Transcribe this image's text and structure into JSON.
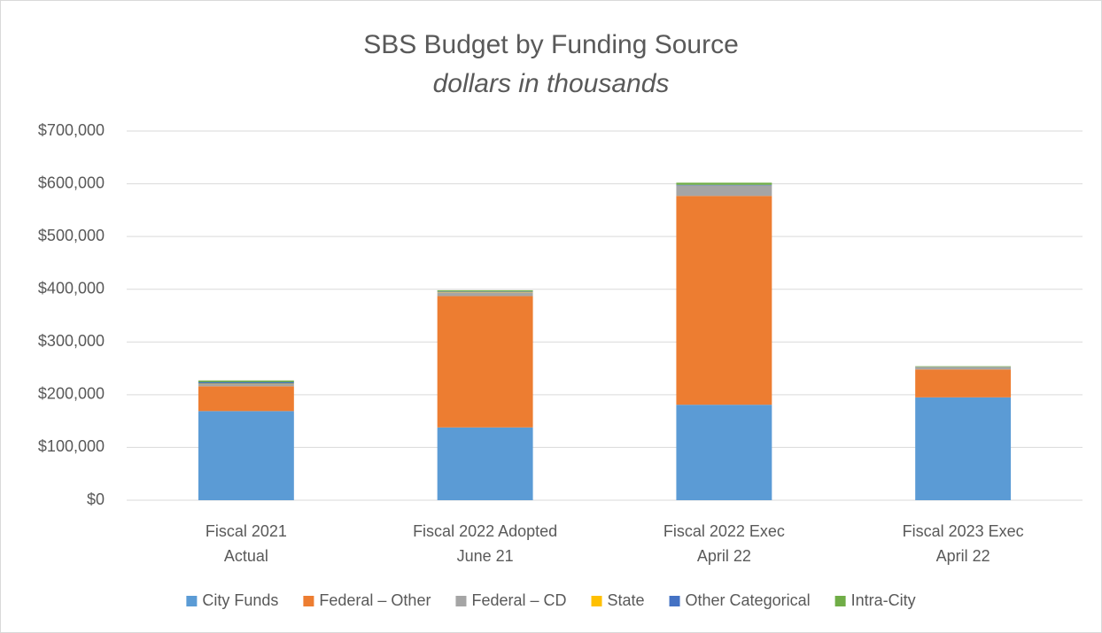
{
  "chart_data": {
    "type": "stacked_bar",
    "title": "SBS Budget by Funding Source",
    "subtitle": "dollars in thousands",
    "categories": [
      "Fiscal 2021\nActual",
      "Fiscal 2022 Adopted\nJune 21",
      "Fiscal 2022 Exec\nApril 22",
      "Fiscal 2023 Exec\nApril 22"
    ],
    "series": [
      {
        "name": "City Funds",
        "color": "#5b9bd5",
        "values": [
          169000,
          138000,
          181000,
          195000
        ]
      },
      {
        "name": "Federal – Other",
        "color": "#ed7d31",
        "values": [
          47000,
          249000,
          396000,
          53000
        ]
      },
      {
        "name": "Federal – CD",
        "color": "#a5a5a5",
        "values": [
          4000,
          7000,
          20000,
          5000
        ]
      },
      {
        "name": "State",
        "color": "#ffc000",
        "values": [
          1000,
          1000,
          0,
          0
        ]
      },
      {
        "name": "Other Categorical",
        "color": "#4472c4",
        "values": [
          3000,
          1000,
          1000,
          0
        ]
      },
      {
        "name": "Intra-City",
        "color": "#70ad47",
        "values": [
          3000,
          2000,
          4000,
          1000
        ]
      }
    ],
    "ylim": [
      0,
      700000
    ],
    "yticks": [
      {
        "value": 0,
        "label": "$0"
      },
      {
        "value": 100000,
        "label": "$100,000"
      },
      {
        "value": 200000,
        "label": "$200,000"
      },
      {
        "value": 300000,
        "label": "$300,000"
      },
      {
        "value": 400000,
        "label": "$400,000"
      },
      {
        "value": 500000,
        "label": "$500,000"
      },
      {
        "value": 600000,
        "label": "$600,000"
      },
      {
        "value": 700000,
        "label": "$700,000"
      }
    ],
    "grid": true,
    "legend": "bottom"
  }
}
